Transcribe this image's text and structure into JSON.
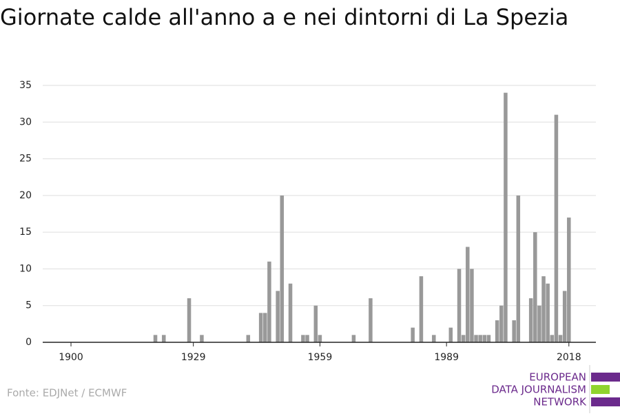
{
  "chart_data": {
    "type": "bar",
    "title": "Giornate calde all'anno a e nei dintorni di La Spezia",
    "x": [
      1920,
      1922,
      1928,
      1931,
      1942,
      1945,
      1946,
      1947,
      1949,
      1950,
      1952,
      1955,
      1956,
      1958,
      1959,
      1967,
      1971,
      1981,
      1983,
      1986,
      1990,
      1992,
      1993,
      1994,
      1995,
      1996,
      1997,
      1998,
      1999,
      2001,
      2002,
      2003,
      2005,
      2006,
      2009,
      2010,
      2011,
      2012,
      2013,
      2014,
      2015,
      2016,
      2017,
      2018
    ],
    "values": [
      1,
      1,
      6,
      1,
      1,
      4,
      4,
      11,
      7,
      20,
      8,
      1,
      1,
      5,
      1,
      1,
      6,
      2,
      9,
      1,
      2,
      10,
      1,
      13,
      10,
      1,
      1,
      1,
      1,
      3,
      5,
      34,
      3,
      20,
      6,
      15,
      5,
      9,
      8,
      1,
      31,
      1,
      7,
      17
    ],
    "color": "#999999",
    "xlim": [
      1893.3,
      2024.4
    ],
    "xticks": [
      1900,
      1929,
      1959,
      1989,
      2018
    ],
    "ylim": [
      0,
      35
    ],
    "yticks": [
      0,
      5,
      10,
      15,
      20,
      25,
      30,
      35
    ],
    "grid": true,
    "source": "Fonte: EDJNet / ECMWF",
    "logo": [
      "EUROPEAN",
      "DATA JOURNALISM",
      "NETWORK"
    ]
  }
}
